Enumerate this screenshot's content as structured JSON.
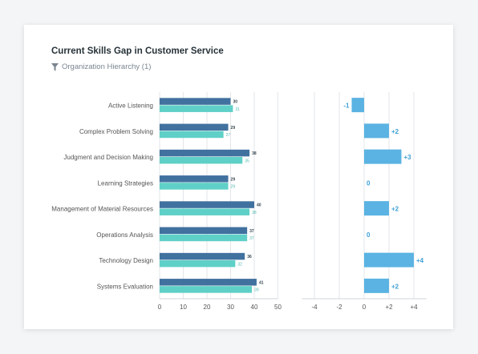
{
  "header": {
    "title": "Current Skills Gap in Customer Service",
    "filter_label": "Organization Hierarchy (1)",
    "filter_icon": "filter-icon"
  },
  "colors": {
    "dark_bar": "#41719f",
    "light_bar": "#5fd0c7",
    "gap_bar": "#5ab3e2",
    "gap_text": "#3da0d6",
    "grid": "#e3e6ea",
    "axis_text": "#555555",
    "label_text": "#555555"
  },
  "chart_data": [
    {
      "type": "bar",
      "orientation": "horizontal",
      "categories": [
        "Active Listening",
        "Complex Problem Solving",
        "Judgment and Decision Making",
        "Learning Strategies",
        "Management of Material Resources",
        "Operations Analysis",
        "Technology Design",
        "Systems Evaluation"
      ],
      "series": [
        {
          "values": [
            30,
            29,
            38,
            29,
            40,
            37,
            36,
            41
          ],
          "color": "#41719f"
        },
        {
          "values": [
            31,
            27,
            35,
            29,
            38,
            37,
            32,
            39
          ],
          "color": "#5fd0c7"
        }
      ],
      "xlim": [
        0,
        50
      ],
      "xticks": [
        0,
        10,
        20,
        30,
        40,
        50
      ],
      "grid": true
    },
    {
      "type": "bar",
      "orientation": "horizontal",
      "categories": [
        "Active Listening",
        "Complex Problem Solving",
        "Judgment and Decision Making",
        "Learning Strategies",
        "Management of Material Resources",
        "Operations Analysis",
        "Technology Design",
        "Systems Evaluation"
      ],
      "values": [
        -1,
        2,
        3,
        0,
        2,
        0,
        4,
        2
      ],
      "value_labels": [
        "-1",
        "+2",
        "+3",
        "0",
        "+2",
        "0",
        "+4",
        "+2"
      ],
      "xlim": [
        -5,
        5
      ],
      "xticks": [
        -4,
        -2,
        0,
        2,
        4
      ],
      "xtick_labels": [
        "-4",
        "-2",
        "0",
        "+2",
        "+4"
      ],
      "grid": true
    }
  ]
}
